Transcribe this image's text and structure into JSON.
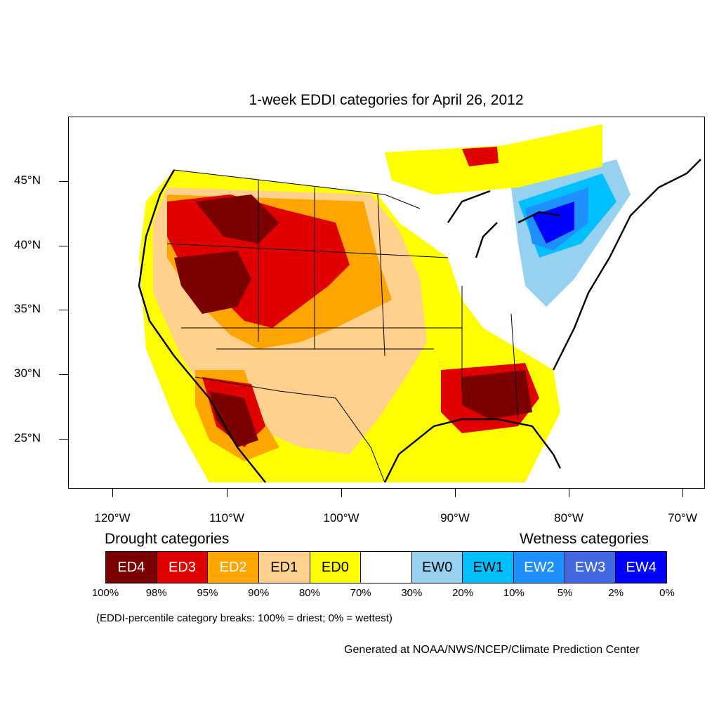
{
  "title": "1-week EDDI categories for April 26, 2012",
  "lat_labels": [
    "45°N",
    "40°N",
    "35°N",
    "30°N",
    "25°N"
  ],
  "lon_labels": [
    "120°W",
    "110°W",
    "100°W",
    "90°W",
    "80°W",
    "70°W"
  ],
  "drought_heading": "Drought categories",
  "wetness_heading": "Wetness categories",
  "legend": [
    {
      "label": "ED4",
      "color": "#7b0000",
      "text_color": "#ffffff"
    },
    {
      "label": "ED3",
      "color": "#e10000",
      "text_color": "#ffffff"
    },
    {
      "label": "ED2",
      "color": "#ffa500",
      "text_color": "#ffffff"
    },
    {
      "label": "ED1",
      "color": "#ffd18c",
      "text_color": "#000000"
    },
    {
      "label": "ED0",
      "color": "#ffff00",
      "text_color": "#000000"
    },
    {
      "label": "",
      "color": "#ffffff",
      "text_color": "#000000"
    },
    {
      "label": "EW0",
      "color": "#96d2f0",
      "text_color": "#000000"
    },
    {
      "label": "EW1",
      "color": "#00bfff",
      "text_color": "#000000"
    },
    {
      "label": "EW2",
      "color": "#1e90ff",
      "text_color": "#ffffff"
    },
    {
      "label": "EW3",
      "color": "#4169e1",
      "text_color": "#ffffff"
    },
    {
      "label": "EW4",
      "color": "#0000ff",
      "text_color": "#ffffff"
    }
  ],
  "percent_breaks": [
    "100%",
    "98%",
    "95%",
    "90%",
    "80%",
    "70%",
    "30%",
    "20%",
    "10%",
    "5%",
    "2%",
    "0%"
  ],
  "note": "(EDDI-percentile category breaks: 100% = driest; 0% = wettest)",
  "credit": "Generated at NOAA/NWS/NCEP/Climate Prediction Center"
}
